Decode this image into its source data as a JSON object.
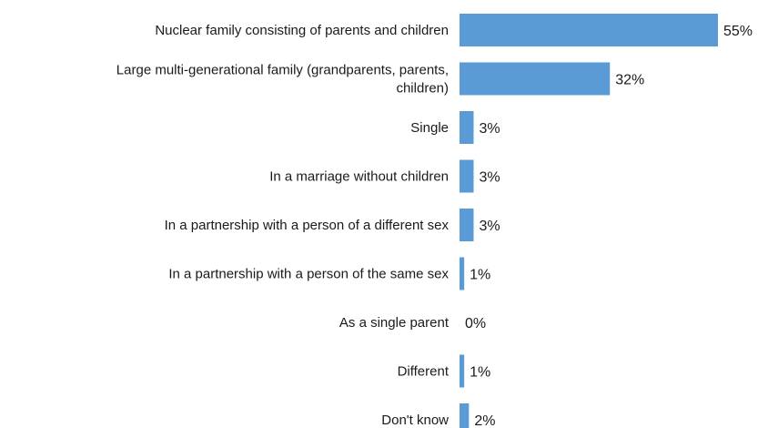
{
  "chart_data": {
    "type": "bar",
    "orientation": "horizontal",
    "title": "",
    "xlabel": "",
    "ylabel": "",
    "grid": false,
    "legend": "none",
    "bar_color": "#5b9bd5",
    "categories": [
      [
        "Nuclear family consisting of parents and children"
      ],
      [
        "Large multi-generational family (grandparents, parents,",
        "children)"
      ],
      [
        "Single"
      ],
      [
        "In a marriage without children"
      ],
      [
        "In a partnership with a person of a different sex"
      ],
      [
        "In a partnership with a person of the same sex"
      ],
      [
        "As a single parent"
      ],
      [
        "Different"
      ],
      [
        "Don't know"
      ]
    ],
    "values": [
      55,
      32,
      3,
      3,
      3,
      1,
      0,
      1,
      2
    ],
    "value_labels": [
      "55%",
      "32%",
      "3%",
      "3%",
      "3%",
      "1%",
      "0%",
      "1%",
      "2%"
    ],
    "xlim": [
      0,
      55
    ]
  }
}
